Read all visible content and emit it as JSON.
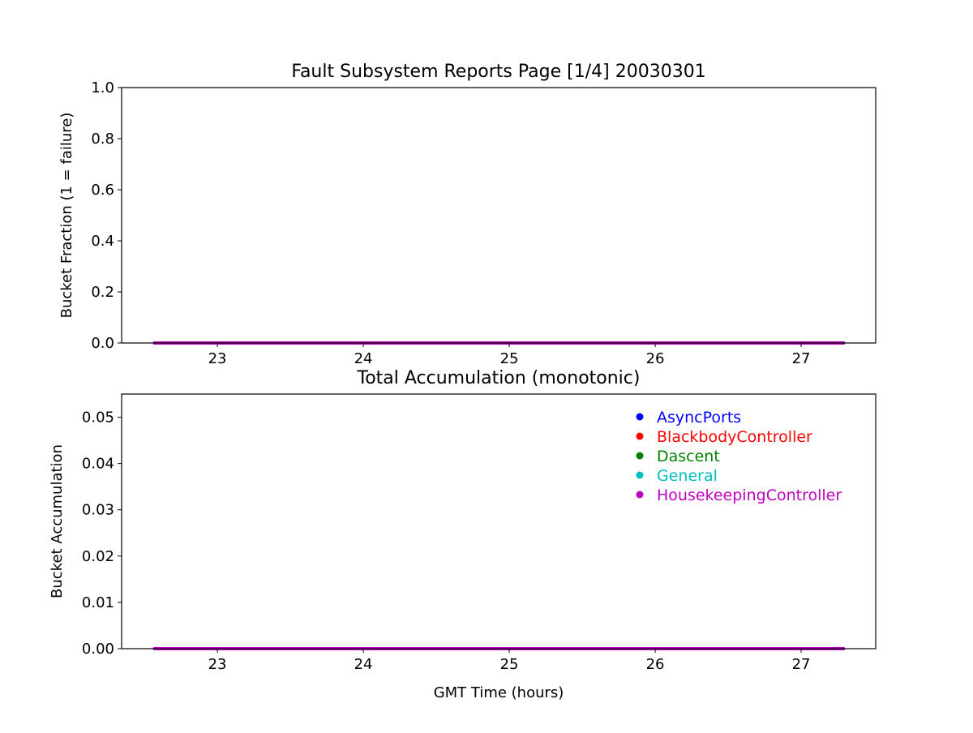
{
  "chart_data": [
    {
      "type": "line",
      "title": "Fault Subsystem Reports Page [1/4] 20030301",
      "xlabel": "",
      "ylabel": "Bucket Fraction (1 = failure)",
      "xlim": [
        22.344,
        27.511
      ],
      "ylim": [
        0,
        1.0
      ],
      "xticks": [
        "23",
        "24",
        "25",
        "26",
        "27"
      ],
      "yticks": [
        "0.0",
        "0.2",
        "0.4",
        "0.6",
        "0.8",
        "1.0"
      ],
      "grid": false,
      "series": [
        {
          "color": "#0000ff",
          "x": [
            22.57,
            27.29
          ],
          "y": [
            0,
            0
          ]
        },
        {
          "color": "#ff0000",
          "x": [
            22.57,
            27.29
          ],
          "y": [
            0,
            0
          ]
        },
        {
          "color": "#008000",
          "x": [
            22.57,
            27.29
          ],
          "y": [
            0,
            0
          ]
        },
        {
          "color": "#00bfbf",
          "x": [
            22.57,
            27.29
          ],
          "y": [
            0,
            0
          ]
        },
        {
          "color": "#bf00bf",
          "x": [
            22.57,
            27.29
          ],
          "y": [
            0,
            0
          ]
        }
      ]
    },
    {
      "type": "line",
      "title": "Total Accumulation (monotonic)",
      "xlabel": "GMT Time (hours)",
      "ylabel": "Bucket Accumulation",
      "xlim": [
        22.344,
        27.511
      ],
      "ylim": [
        0,
        0.055
      ],
      "xticks": [
        "23",
        "24",
        "25",
        "26",
        "27"
      ],
      "yticks": [
        "0.00",
        "0.01",
        "0.02",
        "0.03",
        "0.04",
        "0.05"
      ],
      "grid": false,
      "legend_position": "top-right",
      "series": [
        {
          "name": "AsyncPorts",
          "color": "#0000ff",
          "x": [
            22.57,
            27.29
          ],
          "y": [
            0,
            0
          ]
        },
        {
          "name": "BlackbodyController",
          "color": "#ff0000",
          "x": [
            22.57,
            27.29
          ],
          "y": [
            0,
            0
          ]
        },
        {
          "name": "Dascent",
          "color": "#008000",
          "x": [
            22.57,
            27.29
          ],
          "y": [
            0,
            0
          ]
        },
        {
          "name": "General",
          "color": "#00bfbf",
          "x": [
            22.57,
            27.29
          ],
          "y": [
            0,
            0
          ]
        },
        {
          "name": "HousekeepingController",
          "color": "#bf00bf",
          "x": [
            22.57,
            27.29
          ],
          "y": [
            0,
            0
          ]
        }
      ]
    }
  ]
}
